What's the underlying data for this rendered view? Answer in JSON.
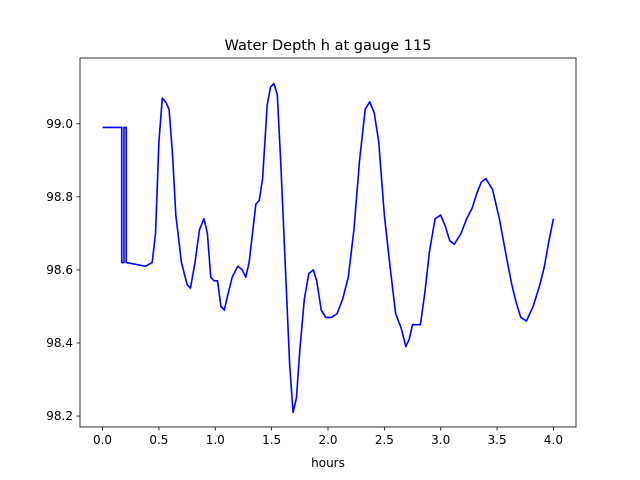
{
  "chart_data": {
    "type": "line",
    "title": "Water Depth h at gauge 115",
    "xlabel": "hours",
    "ylabel": "",
    "xlim": [
      -0.2,
      4.2
    ],
    "ylim": [
      98.17,
      99.18
    ],
    "xticks": [
      0.0,
      0.5,
      1.0,
      1.5,
      2.0,
      2.5,
      3.0,
      3.5,
      4.0
    ],
    "xtick_labels": [
      "0.0",
      "0.5",
      "1.0",
      "1.5",
      "2.0",
      "2.5",
      "3.0",
      "3.5",
      "4.0"
    ],
    "yticks": [
      98.2,
      98.4,
      98.6,
      98.8,
      99.0
    ],
    "ytick_labels": [
      "98.2",
      "98.4",
      "98.6",
      "98.8",
      "99.0"
    ],
    "grid": false,
    "line_color": "#0000ff",
    "series": [
      {
        "x": [
          0.0,
          0.17,
          0.17,
          0.19,
          0.19,
          0.21,
          0.21,
          0.3,
          0.38,
          0.44,
          0.47,
          0.5,
          0.53,
          0.56,
          0.59,
          0.62,
          0.65,
          0.7,
          0.75,
          0.78,
          0.82,
          0.86,
          0.9,
          0.93,
          0.96,
          0.99,
          1.02,
          1.05,
          1.08,
          1.11,
          1.15,
          1.2,
          1.24,
          1.27,
          1.3,
          1.33,
          1.36,
          1.39,
          1.42,
          1.46,
          1.49,
          1.52,
          1.55,
          1.58,
          1.62,
          1.66,
          1.69,
          1.72,
          1.75,
          1.79,
          1.83,
          1.87,
          1.9,
          1.94,
          1.98,
          2.03,
          2.08,
          2.13,
          2.18,
          2.23,
          2.28,
          2.33,
          2.37,
          2.41,
          2.45,
          2.5,
          2.55,
          2.6,
          2.65,
          2.69,
          2.72,
          2.75,
          2.78,
          2.82,
          2.86,
          2.9,
          2.95,
          3.0,
          3.04,
          3.08,
          3.12,
          3.18,
          3.23,
          3.28,
          3.32,
          3.36,
          3.4,
          3.46,
          3.52,
          3.58,
          3.63,
          3.67,
          3.71,
          3.76,
          3.82,
          3.88,
          3.92,
          3.96,
          4.0
        ],
        "values": [
          98.99,
          98.99,
          98.62,
          98.62,
          98.99,
          98.99,
          98.62,
          98.615,
          98.61,
          98.62,
          98.7,
          98.95,
          99.07,
          99.06,
          99.04,
          98.92,
          98.75,
          98.62,
          98.56,
          98.55,
          98.62,
          98.71,
          98.74,
          98.7,
          98.58,
          98.57,
          98.57,
          98.5,
          98.49,
          98.53,
          98.58,
          98.61,
          98.6,
          98.58,
          98.62,
          98.7,
          98.78,
          98.79,
          98.85,
          99.05,
          99.1,
          99.11,
          99.08,
          98.9,
          98.62,
          98.34,
          98.21,
          98.25,
          98.38,
          98.52,
          98.59,
          98.6,
          98.57,
          98.49,
          98.47,
          98.47,
          98.48,
          98.52,
          98.58,
          98.71,
          98.9,
          99.04,
          99.06,
          99.03,
          98.95,
          98.75,
          98.61,
          98.48,
          98.44,
          98.39,
          98.41,
          98.45,
          98.45,
          98.45,
          98.54,
          98.65,
          98.74,
          98.75,
          98.72,
          98.68,
          98.67,
          98.7,
          98.74,
          98.77,
          98.81,
          98.84,
          98.85,
          98.82,
          98.74,
          98.64,
          98.56,
          98.51,
          98.47,
          98.46,
          98.5,
          98.56,
          98.61,
          98.68,
          98.74
        ]
      }
    ]
  }
}
